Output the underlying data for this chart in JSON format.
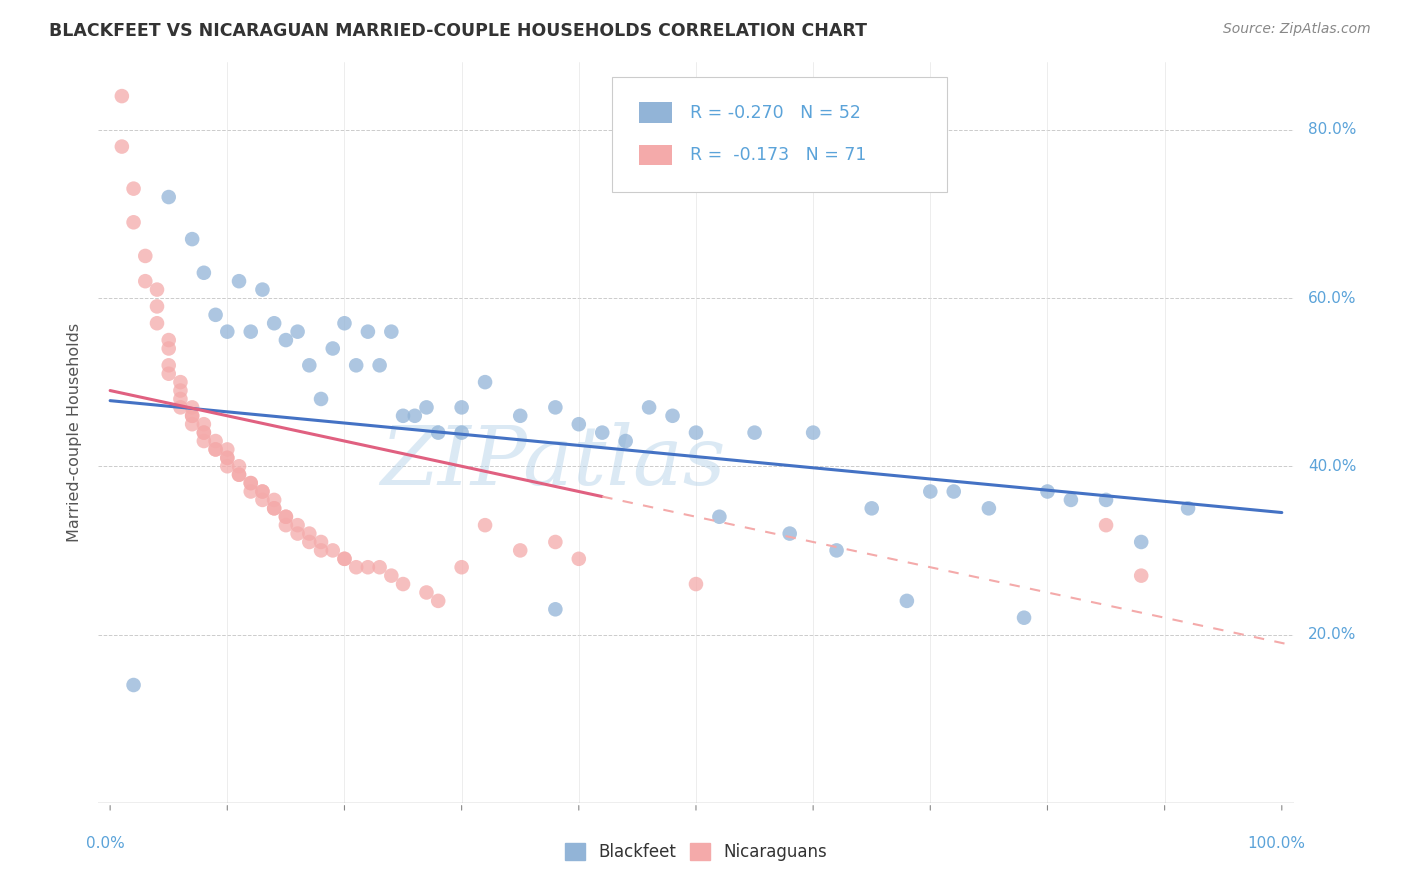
{
  "title": "BLACKFEET VS NICARAGUAN MARRIED-COUPLE HOUSEHOLDS CORRELATION CHART",
  "source": "Source: ZipAtlas.com",
  "ylabel": "Married-couple Households",
  "xlim": [
    0,
    1.0
  ],
  "ylim": [
    0,
    0.88
  ],
  "legend_labels": [
    "Blackfeet",
    "Nicaraguans"
  ],
  "blue_color": "#92B4D7",
  "pink_color": "#F4AAAA",
  "blue_line_color": "#4472C4",
  "pink_line_color": "#E06080",
  "pink_dash_color": "#F4AAAA",
  "watermark": "ZIPatlas",
  "R_blue": -0.27,
  "N_blue": 52,
  "R_pink": -0.173,
  "N_pink": 71,
  "blue_x": [
    0.02,
    0.05,
    0.07,
    0.08,
    0.09,
    0.1,
    0.11,
    0.12,
    0.13,
    0.14,
    0.15,
    0.16,
    0.17,
    0.18,
    0.19,
    0.2,
    0.21,
    0.22,
    0.23,
    0.24,
    0.25,
    0.26,
    0.27,
    0.28,
    0.3,
    0.3,
    0.32,
    0.35,
    0.38,
    0.38,
    0.4,
    0.42,
    0.44,
    0.46,
    0.48,
    0.5,
    0.52,
    0.55,
    0.58,
    0.6,
    0.62,
    0.65,
    0.68,
    0.7,
    0.72,
    0.75,
    0.78,
    0.8,
    0.82,
    0.85,
    0.88,
    0.92
  ],
  "blue_y": [
    0.14,
    0.72,
    0.67,
    0.63,
    0.58,
    0.56,
    0.62,
    0.56,
    0.61,
    0.57,
    0.55,
    0.56,
    0.52,
    0.48,
    0.54,
    0.57,
    0.52,
    0.56,
    0.52,
    0.56,
    0.46,
    0.46,
    0.47,
    0.44,
    0.47,
    0.44,
    0.5,
    0.46,
    0.23,
    0.47,
    0.45,
    0.44,
    0.43,
    0.47,
    0.46,
    0.44,
    0.34,
    0.44,
    0.32,
    0.44,
    0.3,
    0.35,
    0.24,
    0.37,
    0.37,
    0.35,
    0.22,
    0.37,
    0.36,
    0.36,
    0.31,
    0.35
  ],
  "pink_x": [
    0.01,
    0.01,
    0.02,
    0.02,
    0.03,
    0.03,
    0.04,
    0.04,
    0.04,
    0.05,
    0.05,
    0.05,
    0.05,
    0.06,
    0.06,
    0.06,
    0.06,
    0.07,
    0.07,
    0.07,
    0.07,
    0.08,
    0.08,
    0.08,
    0.08,
    0.09,
    0.09,
    0.09,
    0.1,
    0.1,
    0.1,
    0.1,
    0.11,
    0.11,
    0.11,
    0.12,
    0.12,
    0.12,
    0.13,
    0.13,
    0.13,
    0.14,
    0.14,
    0.14,
    0.15,
    0.15,
    0.15,
    0.16,
    0.16,
    0.17,
    0.17,
    0.18,
    0.18,
    0.19,
    0.2,
    0.2,
    0.21,
    0.22,
    0.23,
    0.24,
    0.25,
    0.27,
    0.28,
    0.3,
    0.32,
    0.35,
    0.38,
    0.4,
    0.5,
    0.85,
    0.88
  ],
  "pink_y": [
    0.84,
    0.78,
    0.73,
    0.69,
    0.65,
    0.62,
    0.61,
    0.59,
    0.57,
    0.55,
    0.54,
    0.52,
    0.51,
    0.5,
    0.49,
    0.48,
    0.47,
    0.47,
    0.46,
    0.46,
    0.45,
    0.45,
    0.44,
    0.44,
    0.43,
    0.43,
    0.42,
    0.42,
    0.42,
    0.41,
    0.41,
    0.4,
    0.4,
    0.39,
    0.39,
    0.38,
    0.38,
    0.37,
    0.37,
    0.37,
    0.36,
    0.36,
    0.35,
    0.35,
    0.34,
    0.34,
    0.33,
    0.33,
    0.32,
    0.32,
    0.31,
    0.31,
    0.3,
    0.3,
    0.29,
    0.29,
    0.28,
    0.28,
    0.28,
    0.27,
    0.26,
    0.25,
    0.24,
    0.28,
    0.33,
    0.3,
    0.31,
    0.29,
    0.26,
    0.33,
    0.27
  ]
}
